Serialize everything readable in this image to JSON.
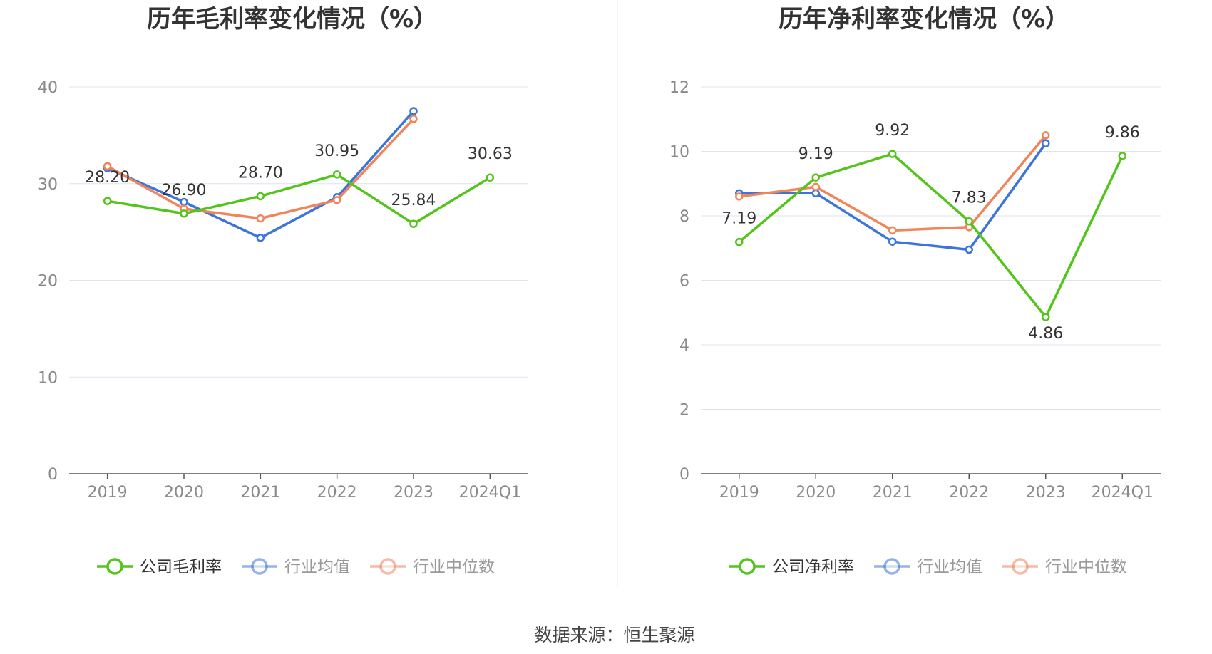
{
  "source": "数据来源：恒生聚源",
  "chart_data": [
    {
      "type": "line",
      "title": "历年毛利率变化情况（%）",
      "categories": [
        "2019",
        "2020",
        "2021",
        "2022",
        "2023",
        "2024Q1"
      ],
      "ylim": [
        0,
        40
      ],
      "yticks": [
        0,
        10,
        20,
        30,
        40
      ],
      "grid": true,
      "legend_position": "bottom-center",
      "series": [
        {
          "name": "公司毛利率",
          "color": "#52c41a",
          "values": [
            28.2,
            26.9,
            28.7,
            30.95,
            25.84,
            30.63
          ],
          "labels": [
            "28.20",
            "26.90",
            "28.70",
            "30.95",
            "25.84",
            "30.63"
          ]
        },
        {
          "name": "行业均值",
          "color": "#3b74db",
          "values": [
            31.6,
            28.1,
            24.4,
            28.6,
            37.5,
            null
          ]
        },
        {
          "name": "行业中位数",
          "color": "#f0855a",
          "values": [
            31.8,
            27.4,
            26.4,
            28.3,
            36.7,
            null
          ]
        }
      ]
    },
    {
      "type": "line",
      "title": "历年净利率变化情况（%）",
      "categories": [
        "2019",
        "2020",
        "2021",
        "2022",
        "2023",
        "2024Q1"
      ],
      "ylim": [
        0,
        12
      ],
      "yticks": [
        0,
        2,
        4,
        6,
        8,
        10,
        12
      ],
      "grid": true,
      "legend_position": "bottom-center",
      "series": [
        {
          "name": "公司净利率",
          "color": "#52c41a",
          "values": [
            7.19,
            9.19,
            9.92,
            7.83,
            4.86,
            9.86
          ],
          "labels": [
            "7.19",
            "9.19",
            "9.92",
            "7.83",
            "4.86",
            "9.86"
          ]
        },
        {
          "name": "行业均值",
          "color": "#3b74db",
          "values": [
            8.7,
            8.7,
            7.2,
            6.95,
            10.25,
            null
          ]
        },
        {
          "name": "行业中位数",
          "color": "#f0855a",
          "values": [
            8.6,
            8.9,
            7.55,
            7.65,
            10.5,
            null
          ]
        }
      ]
    }
  ]
}
